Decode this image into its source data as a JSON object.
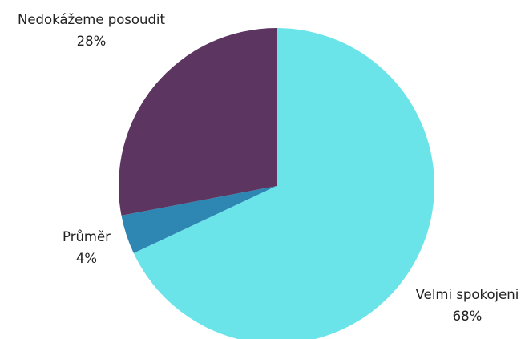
{
  "chart_data": {
    "type": "pie",
    "title": "",
    "slices": [
      {
        "label": "Velmi spokojeni",
        "value": 68,
        "display": "68%",
        "color": "#6ae4e8"
      },
      {
        "label": "Průměr",
        "value": 4,
        "display": "4%",
        "color": "#2e86b3"
      },
      {
        "label": "Nedokážeme posoudit",
        "value": 28,
        "display": "28%",
        "color": "#5c3661"
      }
    ],
    "start": "12 o'clock",
    "direction": "clockwise",
    "legend": "none"
  }
}
